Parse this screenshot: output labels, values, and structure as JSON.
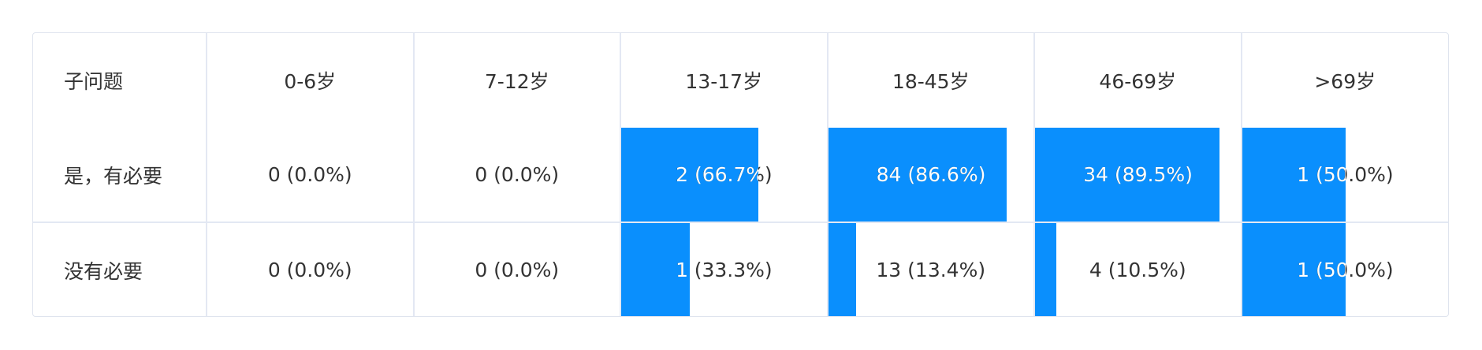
{
  "table": {
    "headers": [
      "子问题",
      "0-6岁",
      "7-12岁",
      "13-17岁",
      "18-45岁",
      "46-69岁",
      ">69岁"
    ],
    "rows": [
      {
        "label": "是，有必要",
        "cells": [
          {
            "text": "0 (0.0%)",
            "fraction": 0.0
          },
          {
            "text": "0 (0.0%)",
            "fraction": 0.0
          },
          {
            "text": "2 (66.7%)",
            "fraction": 0.667
          },
          {
            "text": "84 (86.6%)",
            "fraction": 0.866
          },
          {
            "text": "34 (89.5%)",
            "fraction": 0.895
          },
          {
            "text": "1 (50.0%)",
            "fraction": 0.5
          }
        ]
      },
      {
        "label": "没有必要",
        "cells": [
          {
            "text": "0 (0.0%)",
            "fraction": 0.0
          },
          {
            "text": "0 (0.0%)",
            "fraction": 0.0
          },
          {
            "text": "1 (33.3%)",
            "fraction": 0.333
          },
          {
            "text": "13 (13.4%)",
            "fraction": 0.134
          },
          {
            "text": "4 (10.5%)",
            "fraction": 0.105
          },
          {
            "text": "1 (50.0%)",
            "fraction": 0.5
          }
        ]
      }
    ]
  },
  "colors": {
    "bar": "#0a8ffd",
    "text": "#333333",
    "border": "#e3e8f3"
  }
}
